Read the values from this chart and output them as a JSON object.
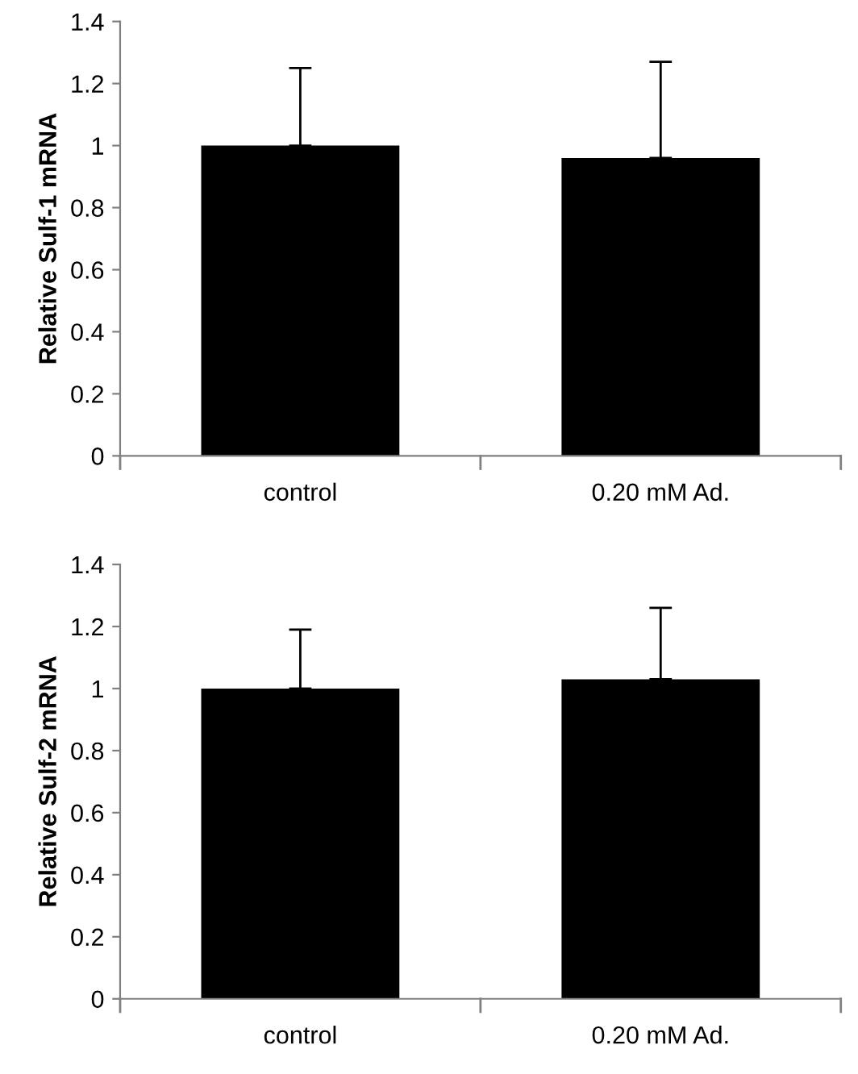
{
  "chart_data": [
    {
      "type": "bar",
      "ylabel": "Relative Sulf-1 mRNA",
      "categories": [
        "control",
        "0.20 mM Ad."
      ],
      "values": [
        1.0,
        0.96
      ],
      "errors": [
        [
          1.0,
          1.25
        ],
        [
          0.96,
          1.27
        ]
      ],
      "color": "#000000",
      "ylim": [
        0,
        1.4
      ],
      "yticks": [
        0,
        0.2,
        0.4,
        0.6,
        0.8,
        1,
        1.2,
        1.4
      ],
      "grid": false,
      "legend": false
    },
    {
      "type": "bar",
      "ylabel": "Relative Sulf-2 mRNA",
      "categories": [
        "control",
        "0.20 mM Ad."
      ],
      "values": [
        1.0,
        1.03
      ],
      "errors": [
        [
          1.0,
          1.19
        ],
        [
          1.03,
          1.26
        ]
      ],
      "color": "#000000",
      "ylim": [
        0,
        1.4
      ],
      "yticks": [
        0,
        0.2,
        0.4,
        0.6,
        0.8,
        1,
        1.2,
        1.4
      ],
      "grid": false,
      "legend": false
    }
  ]
}
